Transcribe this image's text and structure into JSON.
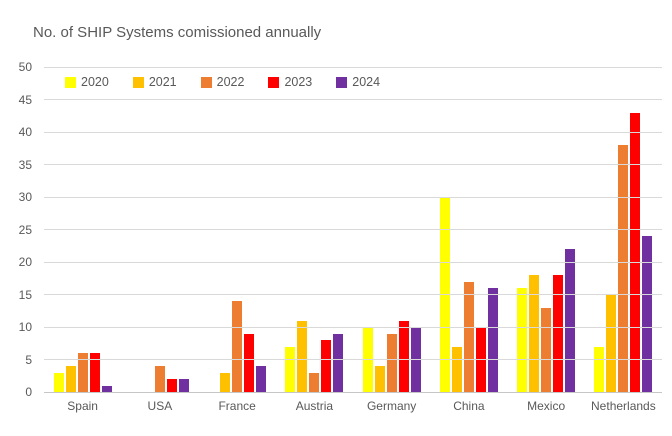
{
  "chart_data": {
    "type": "bar",
    "title": "No. of SHIP Systems comissioned annually",
    "categories": [
      "Spain",
      "USA",
      "France",
      "Austria",
      "Germany",
      "China",
      "Mexico",
      "Netherlands"
    ],
    "series": [
      {
        "name": "2020",
        "color": "#FFFF00",
        "values": [
          3,
          0,
          0,
          7,
          10,
          30,
          16,
          7
        ]
      },
      {
        "name": "2021",
        "color": "#FFC000",
        "values": [
          4,
          0,
          3,
          11,
          4,
          7,
          18,
          15
        ]
      },
      {
        "name": "2022",
        "color": "#ED7D31",
        "values": [
          6,
          4,
          14,
          3,
          9,
          17,
          13,
          38
        ]
      },
      {
        "name": "2023",
        "color": "#FF0000",
        "values": [
          6,
          2,
          9,
          8,
          11,
          10,
          18,
          43
        ]
      },
      {
        "name": "2024",
        "color": "#7030A0",
        "values": [
          1,
          2,
          4,
          9,
          10,
          16,
          22,
          24
        ]
      }
    ],
    "xlabel": "",
    "ylabel": "",
    "ylim": [
      0,
      50
    ],
    "yticks": [
      0,
      5,
      10,
      15,
      20,
      25,
      30,
      35,
      40,
      45,
      50
    ],
    "grid": true,
    "legend_position": "top-left",
    "colors": {
      "gridline": "#D9D9D9",
      "axis_text": "#595959",
      "title_text": "#595959",
      "background": "#FFFFFF"
    }
  }
}
